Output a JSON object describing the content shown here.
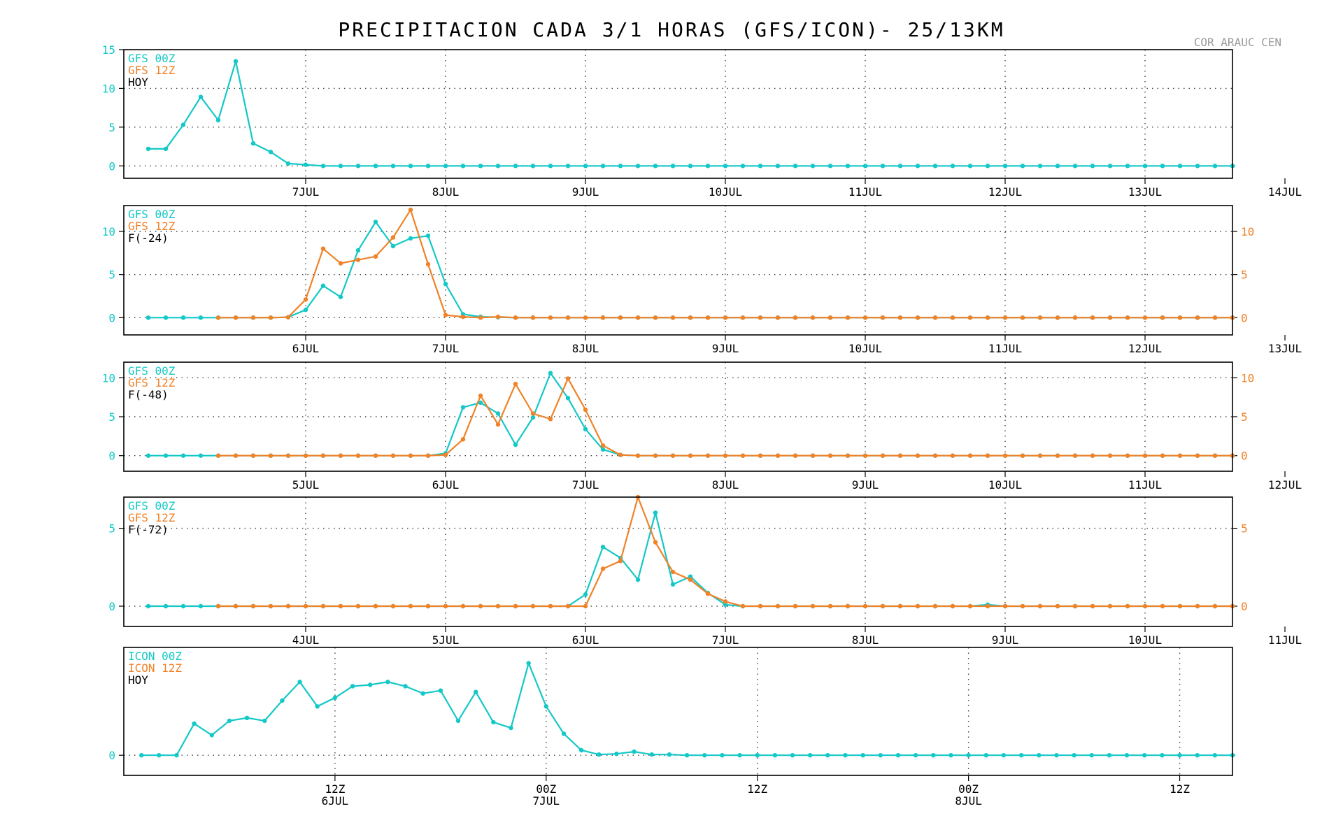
{
  "figure": {
    "title": "PRECIPITACION CADA 3/1 HORAS (GFS/ICON)- 25/13KM",
    "station": "COR ARAUC CEN",
    "colors": {
      "cyan": "#14C8C8",
      "orange": "#F08228",
      "black": "#000000"
    }
  },
  "chart_data": [
    {
      "id": "p1",
      "type": "line",
      "legend": [
        "GFS 00Z",
        "GFS 12Z",
        "HOY"
      ],
      "xdomain": [
        -4.4,
        59.0
      ],
      "ylim": [
        -1.6,
        15.0
      ],
      "yticks": [
        0,
        5,
        10,
        15
      ],
      "right_axis": false,
      "xticks": [
        {
          "x": 6,
          "label": "7JUL"
        },
        {
          "x": 14,
          "label": "8JUL"
        },
        {
          "x": 22,
          "label": "9JUL"
        },
        {
          "x": 30,
          "label": "10JUL"
        },
        {
          "x": 38,
          "label": "11JUL"
        },
        {
          "x": 46,
          "label": "12JUL"
        },
        {
          "x": 54,
          "label": "13JUL"
        },
        {
          "x": 62,
          "label": "14JUL"
        }
      ],
      "series": [
        {
          "name": "GFS 00Z",
          "color": "cyan",
          "x0": -3,
          "values": [
            2.2,
            2.2,
            5.3,
            8.9,
            5.9,
            13.5,
            2.9,
            1.8,
            0.3,
            0.15,
            0,
            0,
            0,
            0,
            0,
            0,
            0,
            0,
            0,
            0,
            0,
            0,
            0,
            0,
            0,
            0,
            0,
            0,
            0,
            0,
            0,
            0,
            0,
            0,
            0,
            0,
            0,
            0,
            0,
            0,
            0,
            0,
            0,
            0,
            0,
            0,
            0,
            0,
            0,
            0,
            0,
            0,
            0,
            0,
            0,
            0,
            0,
            0,
            0,
            0,
            0,
            0,
            0,
            0
          ]
        }
      ]
    },
    {
      "id": "p2",
      "type": "line",
      "legend": [
        "GFS 00Z",
        "GFS 12Z",
        "F(-24)"
      ],
      "xdomain": [
        -4.4,
        59.0
      ],
      "ylim": [
        -2.0,
        13.0
      ],
      "yticks": [
        0,
        5,
        10
      ],
      "right_axis": true,
      "xticks": [
        {
          "x": 6,
          "label": "6JUL"
        },
        {
          "x": 14,
          "label": "7JUL"
        },
        {
          "x": 22,
          "label": "8JUL"
        },
        {
          "x": 30,
          "label": "9JUL"
        },
        {
          "x": 38,
          "label": "10JUL"
        },
        {
          "x": 46,
          "label": "11JUL"
        },
        {
          "x": 54,
          "label": "12JUL"
        },
        {
          "x": 62,
          "label": "13JUL"
        }
      ],
      "series": [
        {
          "name": "GFS 00Z",
          "color": "cyan",
          "x0": -3,
          "values": [
            0,
            0,
            0,
            0,
            0,
            0,
            0,
            0,
            0.05,
            0.9,
            3.7,
            2.4,
            7.8,
            11.1,
            8.3,
            9.2,
            9.5,
            3.9,
            0.4,
            0.1,
            0.05,
            0,
            0,
            0,
            0,
            0,
            0,
            0,
            0,
            0,
            0,
            0,
            0,
            0,
            0,
            0,
            0,
            0,
            0,
            0,
            0,
            0,
            0,
            0,
            0,
            0,
            0,
            0,
            0,
            0,
            0,
            0,
            0,
            0,
            0,
            0,
            0,
            0,
            0,
            0,
            0,
            0,
            0,
            0
          ]
        },
        {
          "name": "GFS 12Z",
          "color": "orange",
          "x0": 1,
          "values": [
            0,
            0,
            0,
            0,
            0.05,
            2.1,
            8.0,
            6.3,
            6.7,
            7.1,
            9.3,
            12.5,
            6.2,
            0.3,
            0.1,
            0,
            0.1,
            0,
            0,
            0,
            0,
            0,
            0,
            0,
            0,
            0,
            0,
            0,
            0,
            0,
            0,
            0,
            0,
            0,
            0,
            0,
            0,
            0,
            0,
            0,
            0,
            0,
            0,
            0,
            0,
            0,
            0,
            0,
            0,
            0,
            0,
            0,
            0,
            0,
            0,
            0,
            0,
            0,
            0
          ]
        }
      ]
    },
    {
      "id": "p3",
      "type": "line",
      "legend": [
        "GFS 00Z",
        "GFS 12Z",
        "F(-48)"
      ],
      "xdomain": [
        -4.4,
        59.0
      ],
      "ylim": [
        -2.0,
        12.0
      ],
      "yticks": [
        0,
        5,
        10
      ],
      "right_axis": true,
      "xticks": [
        {
          "x": 6,
          "label": "5JUL"
        },
        {
          "x": 14,
          "label": "6JUL"
        },
        {
          "x": 22,
          "label": "7JUL"
        },
        {
          "x": 30,
          "label": "8JUL"
        },
        {
          "x": 38,
          "label": "9JUL"
        },
        {
          "x": 46,
          "label": "10JUL"
        },
        {
          "x": 54,
          "label": "11JUL"
        },
        {
          "x": 62,
          "label": "12JUL"
        }
      ],
      "series": [
        {
          "name": "GFS 00Z",
          "color": "cyan",
          "x0": -3,
          "values": [
            0,
            0,
            0,
            0,
            0,
            0,
            0,
            0,
            0,
            0,
            0,
            0,
            0,
            0,
            0,
            0,
            0,
            0.3,
            6.2,
            6.8,
            5.4,
            1.4,
            4.9,
            10.6,
            7.4,
            3.4,
            0.8,
            0.1,
            0,
            0,
            0,
            0,
            0,
            0,
            0,
            0,
            0,
            0,
            0,
            0,
            0,
            0,
            0,
            0,
            0,
            0,
            0,
            0,
            0,
            0,
            0,
            0,
            0,
            0,
            0,
            0,
            0,
            0,
            0,
            0,
            0,
            0,
            0,
            0
          ]
        },
        {
          "name": "GFS 12Z",
          "color": "orange",
          "x0": 1,
          "values": [
            0,
            0,
            0,
            0,
            0,
            0,
            0,
            0,
            0,
            0,
            0,
            0,
            0,
            0.1,
            2.1,
            7.7,
            4.0,
            9.2,
            5.4,
            4.7,
            9.9,
            5.9,
            1.3,
            0.1,
            0,
            0,
            0,
            0,
            0,
            0,
            0,
            0,
            0,
            0,
            0,
            0,
            0,
            0,
            0,
            0,
            0,
            0,
            0,
            0,
            0,
            0,
            0,
            0,
            0,
            0,
            0,
            0,
            0,
            0,
            0,
            0,
            0,
            0,
            0
          ]
        }
      ]
    },
    {
      "id": "p4",
      "type": "line",
      "legend": [
        "GFS 00Z",
        "GFS 12Z",
        "F(-72)"
      ],
      "xdomain": [
        -4.4,
        59.0
      ],
      "ylim": [
        -1.3,
        7.0
      ],
      "yticks": [
        0,
        5
      ],
      "right_axis": true,
      "xticks": [
        {
          "x": 6,
          "label": "4JUL"
        },
        {
          "x": 14,
          "label": "5JUL"
        },
        {
          "x": 22,
          "label": "6JUL"
        },
        {
          "x": 30,
          "label": "7JUL"
        },
        {
          "x": 38,
          "label": "8JUL"
        },
        {
          "x": 46,
          "label": "9JUL"
        },
        {
          "x": 54,
          "label": "10JUL"
        },
        {
          "x": 62,
          "label": "11JUL"
        }
      ],
      "series": [
        {
          "name": "GFS 00Z",
          "color": "cyan",
          "x0": -3,
          "values": [
            0,
            0,
            0,
            0,
            0,
            0,
            0,
            0,
            0,
            0,
            0,
            0,
            0,
            0,
            0,
            0,
            0,
            0,
            0,
            0,
            0,
            0,
            0,
            0,
            0,
            0.75,
            3.8,
            3.1,
            1.7,
            6.0,
            1.4,
            1.9,
            0.85,
            0.1,
            0,
            0,
            0,
            0,
            0,
            0,
            0,
            0,
            0,
            0,
            0,
            0,
            0,
            0,
            0.1,
            0,
            0,
            0,
            0,
            0,
            0,
            0,
            0,
            0,
            0,
            0,
            0,
            0,
            0,
            0
          ]
        },
        {
          "name": "GFS 12Z",
          "color": "orange",
          "x0": 1,
          "values": [
            0,
            0,
            0,
            0,
            0,
            0,
            0,
            0,
            0,
            0,
            0,
            0,
            0,
            0,
            0,
            0,
            0,
            0,
            0,
            0,
            0,
            0,
            2.4,
            2.9,
            7.0,
            4.1,
            2.2,
            1.7,
            0.8,
            0.3,
            0,
            0,
            0,
            0,
            0,
            0,
            0,
            0,
            0,
            0,
            0,
            0,
            0,
            0,
            0,
            0,
            0,
            0,
            0,
            0,
            0,
            0,
            0,
            0,
            0,
            0,
            0,
            0,
            0,
            0,
            0
          ]
        }
      ]
    },
    {
      "id": "p5",
      "type": "line",
      "legend": [
        "ICON 00Z",
        "ICON 12Z",
        "HOY"
      ],
      "xdomain": [
        -1.0,
        62.0
      ],
      "ylim": [
        -1.4,
        7.5
      ],
      "yticks": [
        0
      ],
      "right_axis": false,
      "xticks": [
        {
          "x": 11,
          "label": "12Z",
          "label2": "6JUL"
        },
        {
          "x": 23,
          "label": "00Z",
          "label2": "7JUL"
        },
        {
          "x": 35,
          "label": "12Z"
        },
        {
          "x": 47,
          "label": "00Z",
          "label2": "8JUL"
        },
        {
          "x": 59,
          "label": "12Z"
        }
      ],
      "series": [
        {
          "name": "ICON 00Z",
          "color": "cyan",
          "x0": 0,
          "values": [
            0,
            0,
            0,
            2.2,
            1.4,
            2.4,
            2.6,
            2.4,
            3.8,
            5.1,
            3.4,
            4.0,
            4.8,
            4.9,
            5.1,
            4.8,
            4.3,
            4.5,
            2.4,
            4.4,
            2.3,
            1.9,
            6.4,
            3.4,
            1.5,
            0.35,
            0.05,
            0.1,
            0.25,
            0.05,
            0.05,
            0,
            0,
            0,
            0,
            0,
            0,
            0,
            0,
            0,
            0,
            0,
            0,
            0,
            0,
            0,
            0,
            0,
            0,
            0,
            0,
            0,
            0,
            0,
            0,
            0,
            0,
            0,
            0,
            0,
            0,
            0,
            0,
            0
          ]
        }
      ]
    }
  ]
}
